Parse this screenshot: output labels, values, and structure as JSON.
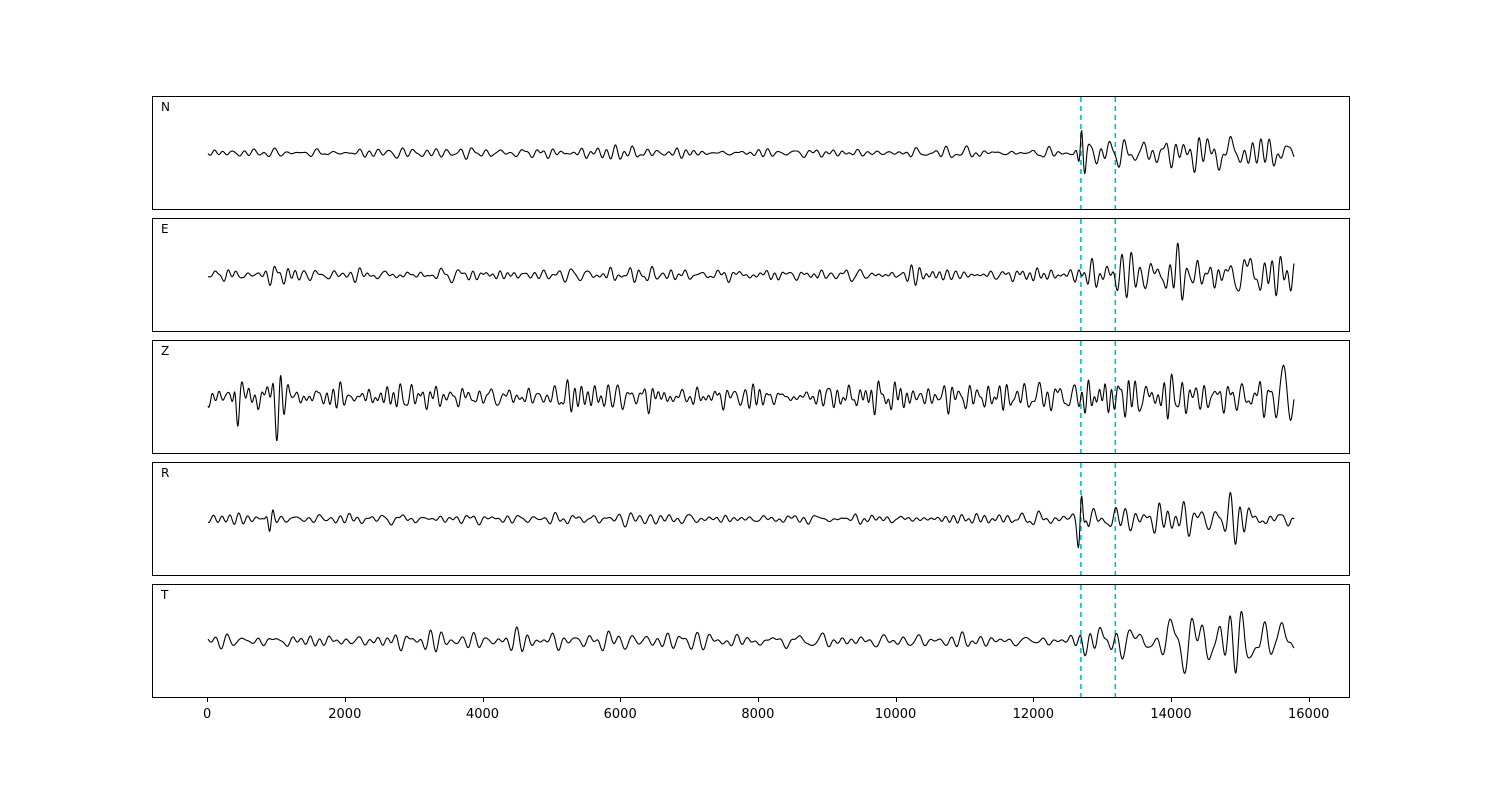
{
  "figure": {
    "background": "#ffffff"
  },
  "chart_data": {
    "type": "line",
    "title": "",
    "xlabel": "",
    "ylabel": "",
    "legend": null,
    "grid": false,
    "xlim": [
      -800,
      16600
    ],
    "x_ticks": [
      0,
      2000,
      4000,
      6000,
      8000,
      10000,
      12000,
      14000,
      16000
    ],
    "trace_range": [
      0,
      15800
    ],
    "event_lines": [
      12700,
      13200
    ],
    "colors": {
      "trace": "#000000",
      "event_line": "#00bfbf",
      "axis": "#000000",
      "background": "#ffffff"
    },
    "description": "Five stacked seismogram component traces (N, E, Z, R, T) with two cyan dashed event-pick lines near x=12700 and x=13200; low-amplitude noise before the pick, high-amplitude coda after.",
    "panels": [
      {
        "label": "N",
        "seed": 101,
        "freq": [
          35,
          150
        ],
        "envelope": [
          [
            0,
            4.5
          ],
          [
            12550,
            4.5
          ],
          [
            12690,
            6
          ],
          [
            12730,
            26
          ],
          [
            12860,
            13
          ],
          [
            13300,
            16
          ],
          [
            14200,
            12
          ],
          [
            15000,
            16
          ],
          [
            15500,
            13
          ],
          [
            15800,
            12
          ]
        ],
        "spikes": [
          {
            "t": 12715,
            "amp": 30,
            "width": 40
          }
        ]
      },
      {
        "label": "E",
        "seed": 202,
        "freq": [
          40,
          170
        ],
        "envelope": [
          [
            0,
            6
          ],
          [
            12600,
            6
          ],
          [
            12730,
            16
          ],
          [
            13000,
            14
          ],
          [
            13300,
            22
          ],
          [
            13700,
            18
          ],
          [
            14500,
            16
          ],
          [
            15100,
            24
          ],
          [
            15400,
            18
          ],
          [
            15800,
            14
          ]
        ],
        "spikes": [
          {
            "t": 15120,
            "amp": 26,
            "width": 80
          }
        ]
      },
      {
        "label": "Z",
        "seed": 303,
        "freq": [
          45,
          200
        ],
        "envelope": [
          [
            0,
            9
          ],
          [
            260,
            9
          ],
          [
            360,
            17
          ],
          [
            700,
            15
          ],
          [
            1100,
            19
          ],
          [
            1700,
            12
          ],
          [
            4000,
            12
          ],
          [
            9000,
            11
          ],
          [
            12600,
            10
          ],
          [
            12750,
            20
          ],
          [
            13400,
            23
          ],
          [
            14300,
            17
          ],
          [
            15200,
            14
          ],
          [
            15600,
            21
          ],
          [
            15800,
            16
          ]
        ],
        "spikes": [
          {
            "t": 1000,
            "amp": -44,
            "width": 55
          },
          {
            "t": 430,
            "amp": -22,
            "width": 40
          },
          {
            "t": 15650,
            "amp": 22,
            "width": 90
          }
        ]
      },
      {
        "label": "R",
        "seed": 404,
        "freq": [
          35,
          150
        ],
        "envelope": [
          [
            0,
            4.5
          ],
          [
            12550,
            5
          ],
          [
            12700,
            24
          ],
          [
            12870,
            13
          ],
          [
            13250,
            19
          ],
          [
            13700,
            13
          ],
          [
            14800,
            15
          ],
          [
            15800,
            11
          ]
        ],
        "spikes": [
          {
            "t": 12705,
            "amp": 28,
            "width": 38
          },
          {
            "t": 900,
            "amp": -13,
            "width": 40
          }
        ]
      },
      {
        "label": "T",
        "seed": 505,
        "freq": [
          30,
          130
        ],
        "envelope": [
          [
            0,
            6
          ],
          [
            2500,
            8
          ],
          [
            5500,
            9
          ],
          [
            6500,
            7
          ],
          [
            12500,
            6
          ],
          [
            12750,
            14
          ],
          [
            13100,
            21
          ],
          [
            13900,
            17
          ],
          [
            14700,
            21
          ],
          [
            15150,
            30
          ],
          [
            15450,
            24
          ],
          [
            15700,
            28
          ],
          [
            15800,
            18
          ]
        ],
        "spikes": [
          {
            "t": 15150,
            "amp": -30,
            "width": 90
          },
          {
            "t": 15600,
            "amp": 26,
            "width": 80
          }
        ]
      }
    ]
  }
}
